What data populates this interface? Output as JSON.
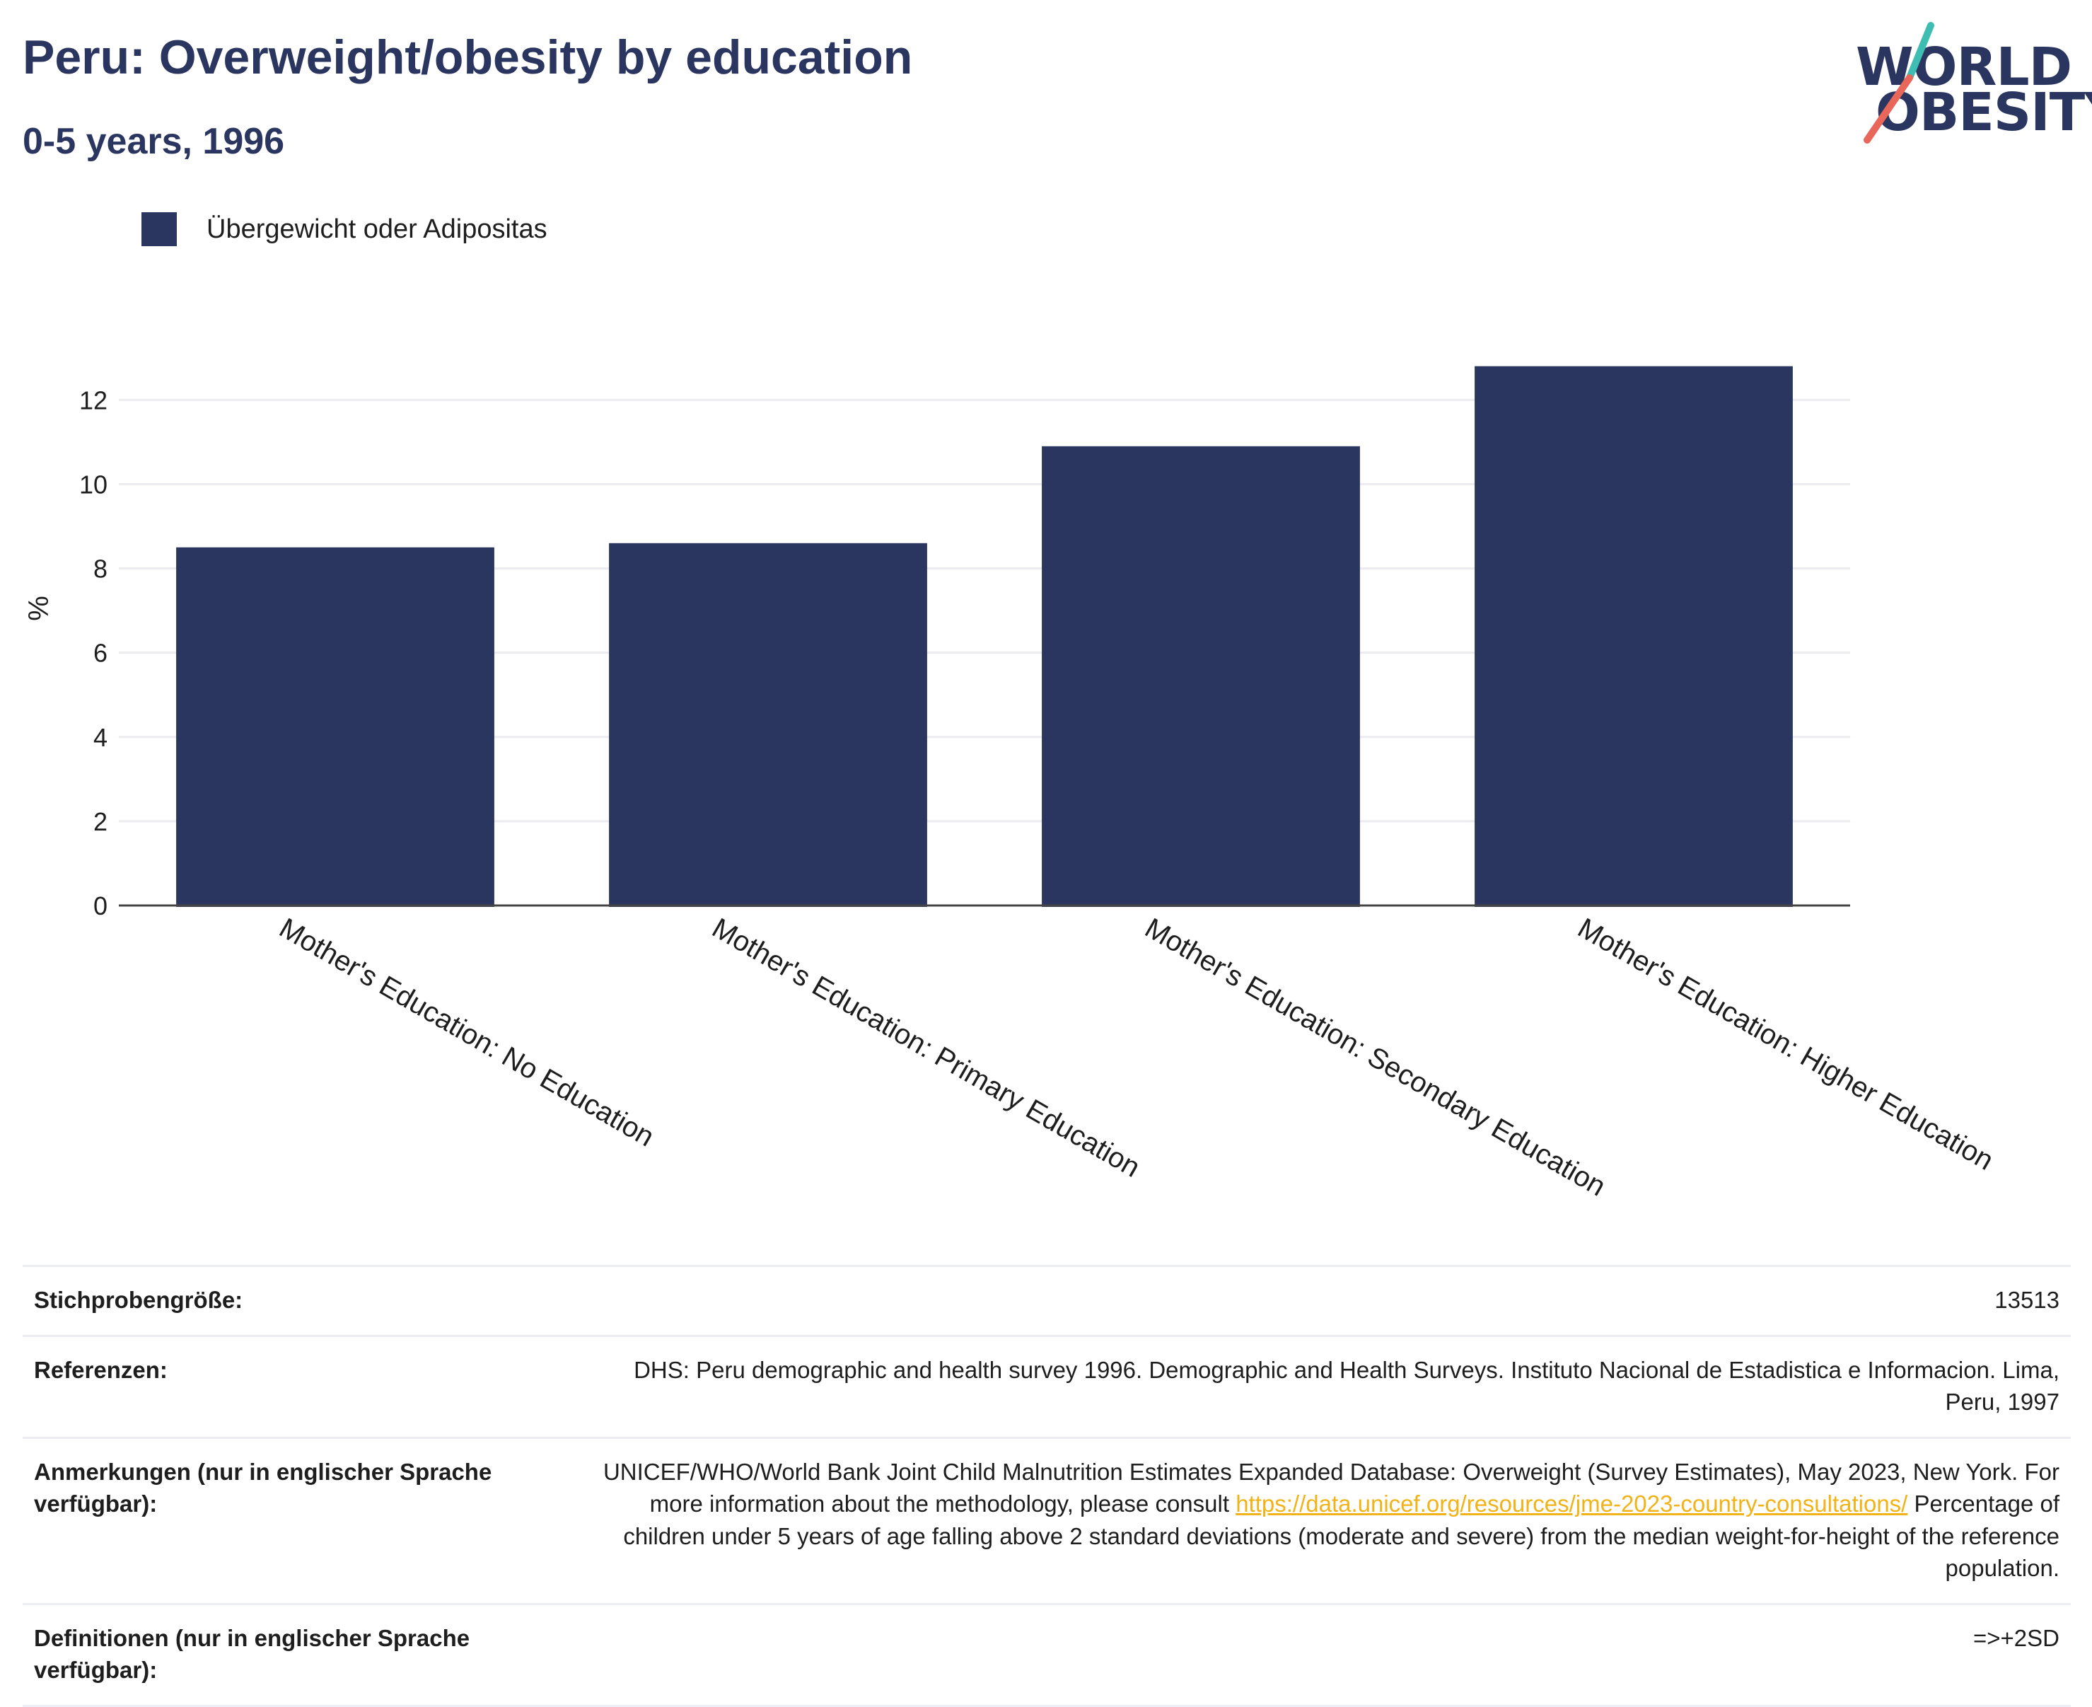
{
  "header": {
    "title": "Peru: Overweight/obesity by education",
    "subtitle": "0-5 years, 1996"
  },
  "logo": {
    "line1": "WORLD",
    "line2": "OBESITY",
    "colors": {
      "text": "#2b3660",
      "slash_top": "#3ebdb3",
      "slash_bottom": "#e8665a"
    }
  },
  "colors": {
    "bar": "#2b3660",
    "title": "#2b3660",
    "link": "#f2b318"
  },
  "chart_data": {
    "type": "bar",
    "categories": [
      "Mother's Education: No Education",
      "Mother's Education: Primary Education",
      "Mother's Education: Secondary Education",
      "Mother's Education: Higher Education"
    ],
    "series": [
      {
        "name": "Übergewicht oder Adipositas",
        "values": [
          8.5,
          8.6,
          10.9,
          12.8
        ],
        "color": "#2b3660"
      }
    ],
    "ylabel": "%",
    "ylim": [
      0,
      13.6
    ],
    "yticks": [
      0,
      2,
      4,
      6,
      8,
      10,
      12
    ],
    "grid": true,
    "legend_position": "top-left"
  },
  "info": {
    "rows": [
      {
        "label": "Stichprobengröße:",
        "value": "13513"
      },
      {
        "label": "Referenzen:",
        "value": "DHS: Peru demographic and health survey 1996. Demographic and Health Surveys. Instituto Nacional de Estadistica e Informacion. Lima, Peru, 1997"
      },
      {
        "label": "Anmerkungen (nur in englischer Sprache verfügbar):",
        "value_before": "UNICEF/WHO/World Bank Joint Child Malnutrition Estimates Expanded Database: Overweight (Survey Estimates), May 2023, New York. For more information about the methodology, please consult ",
        "link_text": "https://data.unicef.org/resources/jme-2023-country-consultations/",
        "value_after": " Percentage of children under 5 years of age falling above 2 standard deviations (moderate and severe) from the median weight-for-height of the reference population."
      },
      {
        "label": "Definitionen (nur in englischer Sprache verfügbar):",
        "value": "=>+2SD"
      }
    ]
  }
}
